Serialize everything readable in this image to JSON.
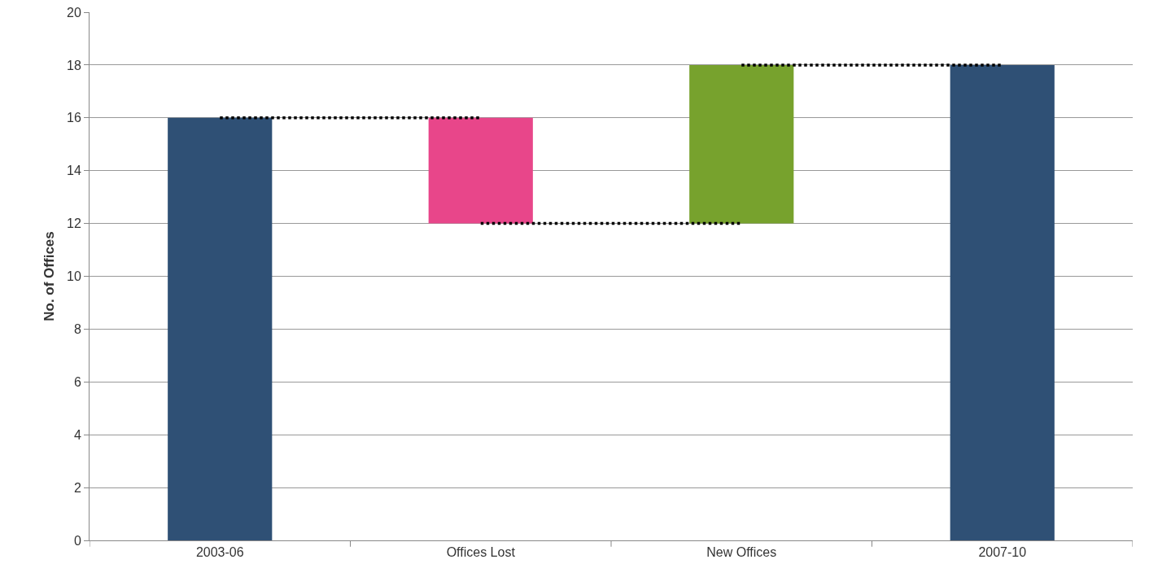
{
  "chart_data": {
    "type": "bar",
    "ylabel": "No. of Offices",
    "categories": [
      "2003-06",
      "Offices Lost",
      "New Offices",
      "2007-10"
    ],
    "series": [
      {
        "colors": [
          "#2f5075",
          "#e8468a",
          "#77a22d",
          "#2f5075"
        ],
        "base": [
          0,
          12,
          12,
          0
        ],
        "values": [
          16,
          4,
          6,
          18
        ]
      },
      {
        "type": "line",
        "color": "#000000",
        "line_style": "dotted",
        "marker": "none",
        "values": [
          16,
          16,
          null,
          null
        ]
      },
      {
        "type": "line",
        "color": "#000000",
        "line_style": "dotted",
        "marker": "none",
        "values": [
          null,
          12,
          12,
          null
        ]
      },
      {
        "type": "line",
        "color": "#000000",
        "line_style": "dotted",
        "marker": "none",
        "values": [
          null,
          null,
          18,
          18
        ]
      }
    ],
    "ylim": [
      0,
      20
    ],
    "yticks": [
      0,
      2,
      4,
      6,
      8,
      10,
      12,
      14,
      16,
      18,
      20
    ],
    "grid": "y"
  }
}
